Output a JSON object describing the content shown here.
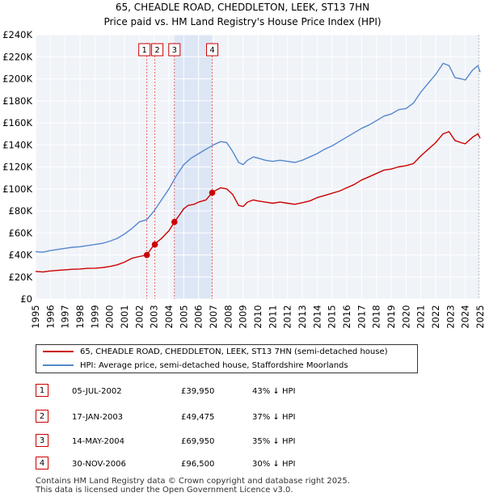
{
  "chart_data": {
    "type": "line",
    "title": "65, CHEADLE ROAD, CHEDDLETON, LEEK, ST13 7HN",
    "subtitle": "Price paid vs. HM Land Registry's House Price Index (HPI)",
    "xlim": [
      1995,
      2025
    ],
    "ylim": [
      0,
      240000
    ],
    "y_ticks": [
      0,
      20000,
      40000,
      60000,
      80000,
      100000,
      120000,
      140000,
      160000,
      180000,
      200000,
      220000,
      240000
    ],
    "y_tick_labels": [
      "£0",
      "£20K",
      "£40K",
      "£60K",
      "£80K",
      "£100K",
      "£120K",
      "£140K",
      "£160K",
      "£180K",
      "£200K",
      "£220K",
      "£240K"
    ],
    "x_ticks": [
      1995,
      1996,
      1997,
      1998,
      1999,
      2000,
      2001,
      2002,
      2003,
      2004,
      2005,
      2006,
      2007,
      2008,
      2009,
      2010,
      2011,
      2012,
      2013,
      2014,
      2015,
      2016,
      2017,
      2018,
      2019,
      2020,
      2021,
      2022,
      2023,
      2024,
      2025
    ],
    "x_tick_labels": [
      "1995",
      "1996",
      "1997",
      "1998",
      "1999",
      "2000",
      "2001",
      "2002",
      "2003",
      "2004",
      "2005",
      "2006",
      "2007",
      "2008",
      "2009",
      "2010",
      "2011",
      "2012",
      "2013",
      "2014",
      "2015",
      "2016",
      "2017",
      "2018",
      "2019",
      "2020",
      "2021",
      "2022",
      "2023",
      "2024",
      "2025"
    ],
    "grid": true,
    "shaded_region": [
      2004.37,
      2006.92
    ],
    "series": [
      {
        "name": "65, CHEADLE ROAD, CHEDDLETON, LEEK, ST13 7HN (semi-detached house)",
        "color": "#cc0000",
        "x": [
          1995.0,
          1995.5,
          1996.0,
          1996.5,
          1997.0,
          1997.5,
          1998.0,
          1998.5,
          1999.0,
          1999.5,
          2000.0,
          2000.5,
          2001.0,
          2001.5,
          2002.0,
          2002.5,
          2003.0,
          2003.5,
          2004.0,
          2004.37,
          2004.7,
          2005.0,
          2005.3,
          2005.7,
          2006.0,
          2006.5,
          2006.92,
          2007.2,
          2007.5,
          2007.9,
          2008.3,
          2008.7,
          2009.0,
          2009.3,
          2009.7,
          2010.0,
          2010.5,
          2011.0,
          2011.5,
          2012.0,
          2012.5,
          2013.0,
          2013.5,
          2014.0,
          2014.5,
          2015.0,
          2015.5,
          2016.0,
          2016.5,
          2017.0,
          2017.5,
          2018.0,
          2018.5,
          2019.0,
          2019.5,
          2020.0,
          2020.5,
          2021.0,
          2021.5,
          2022.0,
          2022.5,
          2022.9,
          2023.3,
          2023.7,
          2024.0,
          2024.5,
          2024.85,
          2025.0
        ],
        "values": [
          25000,
          24500,
          25500,
          26000,
          26500,
          27000,
          27200,
          27800,
          28000,
          28500,
          29500,
          31000,
          33500,
          37000,
          38500,
          39950,
          49475,
          55000,
          62000,
          69950,
          76000,
          82000,
          85000,
          86000,
          88000,
          90000,
          96500,
          99000,
          101000,
          100000,
          95000,
          85000,
          84000,
          88000,
          90000,
          89000,
          88000,
          87000,
          88000,
          87000,
          86000,
          87500,
          89000,
          92000,
          94000,
          96000,
          98000,
          101000,
          104000,
          108000,
          111000,
          114000,
          117000,
          118000,
          120000,
          121000,
          123000,
          130000,
          136000,
          142000,
          150000,
          152000,
          144000,
          142000,
          141000,
          147000,
          150000,
          146000
        ]
      },
      {
        "name": "HPI: Average price, semi-detached house, Staffordshire Moorlands",
        "color": "#5588cc",
        "x": [
          1995.0,
          1995.5,
          1996.0,
          1996.5,
          1997.0,
          1997.5,
          1998.0,
          1998.5,
          1999.0,
          1999.5,
          2000.0,
          2000.5,
          2001.0,
          2001.5,
          2002.0,
          2002.5,
          2003.0,
          2003.5,
          2004.0,
          2004.5,
          2005.0,
          2005.5,
          2006.0,
          2006.5,
          2007.0,
          2007.5,
          2007.9,
          2008.3,
          2008.7,
          2009.0,
          2009.3,
          2009.7,
          2010.0,
          2010.5,
          2011.0,
          2011.5,
          2012.0,
          2012.5,
          2013.0,
          2013.5,
          2014.0,
          2014.5,
          2015.0,
          2015.5,
          2016.0,
          2016.5,
          2017.0,
          2017.5,
          2018.0,
          2018.5,
          2019.0,
          2019.5,
          2020.0,
          2020.5,
          2021.0,
          2021.5,
          2022.0,
          2022.5,
          2022.9,
          2023.3,
          2023.7,
          2024.0,
          2024.5,
          2024.85,
          2025.0
        ],
        "values": [
          43000,
          42500,
          44000,
          45000,
          46000,
          47000,
          47500,
          48500,
          49500,
          50500,
          52500,
          55000,
          59000,
          64000,
          70000,
          72000,
          80000,
          90000,
          100000,
          112000,
          122000,
          128000,
          132000,
          136000,
          140000,
          143000,
          142000,
          134000,
          124000,
          122000,
          126000,
          129000,
          128000,
          126000,
          125000,
          126000,
          125000,
          124000,
          126000,
          129000,
          132000,
          136000,
          139000,
          143000,
          147000,
          151000,
          155000,
          158000,
          162000,
          166000,
          168000,
          172000,
          173000,
          178000,
          188000,
          196000,
          204000,
          214000,
          212000,
          201000,
          200000,
          199000,
          208000,
          212000,
          206000
        ]
      }
    ],
    "transactions": [
      {
        "label": "1",
        "x": 2002.51,
        "price_value": 39950
      },
      {
        "label": "2",
        "x": 2003.05,
        "price_value": 49475
      },
      {
        "label": "3",
        "x": 2004.37,
        "price_value": 69950
      },
      {
        "label": "4",
        "x": 2006.92,
        "price_value": 96500
      }
    ]
  },
  "legend": {
    "property": "65, CHEADLE ROAD, CHEDDLETON, LEEK, ST13 7HN (semi-detached house)",
    "hpi": "HPI: Average price, semi-detached house, Staffordshire Moorlands"
  },
  "table": [
    {
      "num": "1",
      "date": "05-JUL-2002",
      "price": "£39,950",
      "hpi": "43% ↓ HPI"
    },
    {
      "num": "2",
      "date": "17-JAN-2003",
      "price": "£49,475",
      "hpi": "37% ↓ HPI"
    },
    {
      "num": "3",
      "date": "14-MAY-2004",
      "price": "£69,950",
      "hpi": "35% ↓ HPI"
    },
    {
      "num": "4",
      "date": "30-NOV-2006",
      "price": "£96,500",
      "hpi": "30% ↓ HPI"
    }
  ],
  "footer": {
    "line1": "Contains HM Land Registry data © Crown copyright and database right 2025.",
    "line2": "This data is licensed under the Open Government Licence v3.0."
  }
}
